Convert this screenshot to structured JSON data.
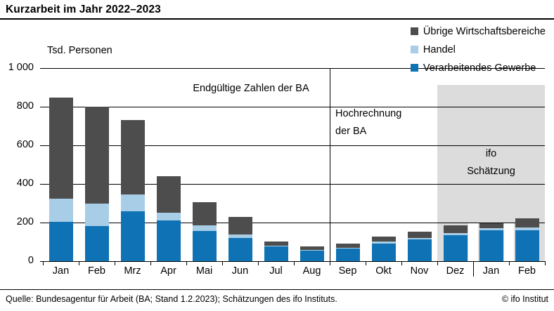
{
  "header": {
    "title": "Kurzarbeit im Jahr 2022–2023"
  },
  "chart": {
    "unit_label": "Tsd. Personen",
    "y_ticks": [
      {
        "label": "1 000",
        "value": 1000
      },
      {
        "label": "800",
        "value": 800
      },
      {
        "label": "600",
        "value": 600
      },
      {
        "label": "400",
        "value": 400
      },
      {
        "label": "200",
        "value": 200
      },
      {
        "label": "0",
        "value": 0
      }
    ],
    "legend_items": [
      {
        "label": "Übrige Wirtschaftsbereiche",
        "color": "#4d4d4d"
      },
      {
        "label": "Handel",
        "color": "#a8cde6"
      },
      {
        "label": "Verarbeitendes Gewerbe",
        "color": "#0e72b5"
      }
    ],
    "annotations": {
      "final_figures": "Endgültige Zahlen der BA",
      "extrapolation_line1": "Hochrechnung",
      "extrapolation_line2": "der BA",
      "estimate_line1": "ifo",
      "estimate_line2": "Schätzung"
    },
    "colors": {
      "bar_blue": "#0e72b5",
      "bar_lightblue": "#a8cde6",
      "bar_darkgray": "#4d4d4d",
      "estimate_region": "#dcdcdc",
      "gridline": "#000000"
    }
  },
  "chart_data": {
    "type": "bar",
    "stacked": true,
    "title": "Kurzarbeit im Jahr 2022–2023",
    "ylabel": "Tsd. Personen",
    "ylim": [
      0,
      1000
    ],
    "y_step": 200,
    "grid": true,
    "legend_position": "top-right",
    "categories": [
      "Jan",
      "Feb",
      "Mrz",
      "Apr",
      "Mai",
      "Jun",
      "Jul",
      "Aug",
      "Sep",
      "Okt",
      "Nov",
      "Dez",
      "Jan",
      "Feb"
    ],
    "series": [
      {
        "name": "Verarbeitendes Gewerbe",
        "color": "#0e72b5",
        "values": [
          205,
          180,
          258,
          210,
          155,
          118,
          75,
          53,
          64,
          92,
          113,
          134,
          158,
          160
        ]
      },
      {
        "name": "Handel",
        "color": "#a8cde6",
        "values": [
          117,
          118,
          88,
          42,
          30,
          20,
          5,
          5,
          6,
          8,
          8,
          10,
          12,
          15
        ]
      },
      {
        "name": "Übrige Wirtschaftsbereiche",
        "color": "#4d4d4d",
        "values": [
          523,
          502,
          384,
          188,
          120,
          92,
          20,
          18,
          20,
          26,
          30,
          41,
          25,
          45
        ]
      }
    ],
    "totals": [
      845,
      800,
      730,
      440,
      305,
      230,
      100,
      76,
      90,
      126,
      151,
      185,
      195,
      220
    ],
    "regions": [
      {
        "label": "Endgültige Zahlen der BA",
        "months": [
          "Jan",
          "Feb",
          "Mrz",
          "Apr",
          "Mai",
          "Jun",
          "Jul",
          "Aug"
        ]
      },
      {
        "label": "Hochrechnung der BA",
        "months": [
          "Sep",
          "Okt",
          "Nov"
        ]
      },
      {
        "label": "ifo Schätzung",
        "months": [
          "Dez",
          "Jan",
          "Feb"
        ],
        "highlighted": true
      }
    ]
  },
  "footer": {
    "source": "Quelle: Bundesagentur für Arbeit (BA; Stand 1.2.2023); Schätzungen des ifo Instituts.",
    "copyright": "© ifo Institut"
  }
}
